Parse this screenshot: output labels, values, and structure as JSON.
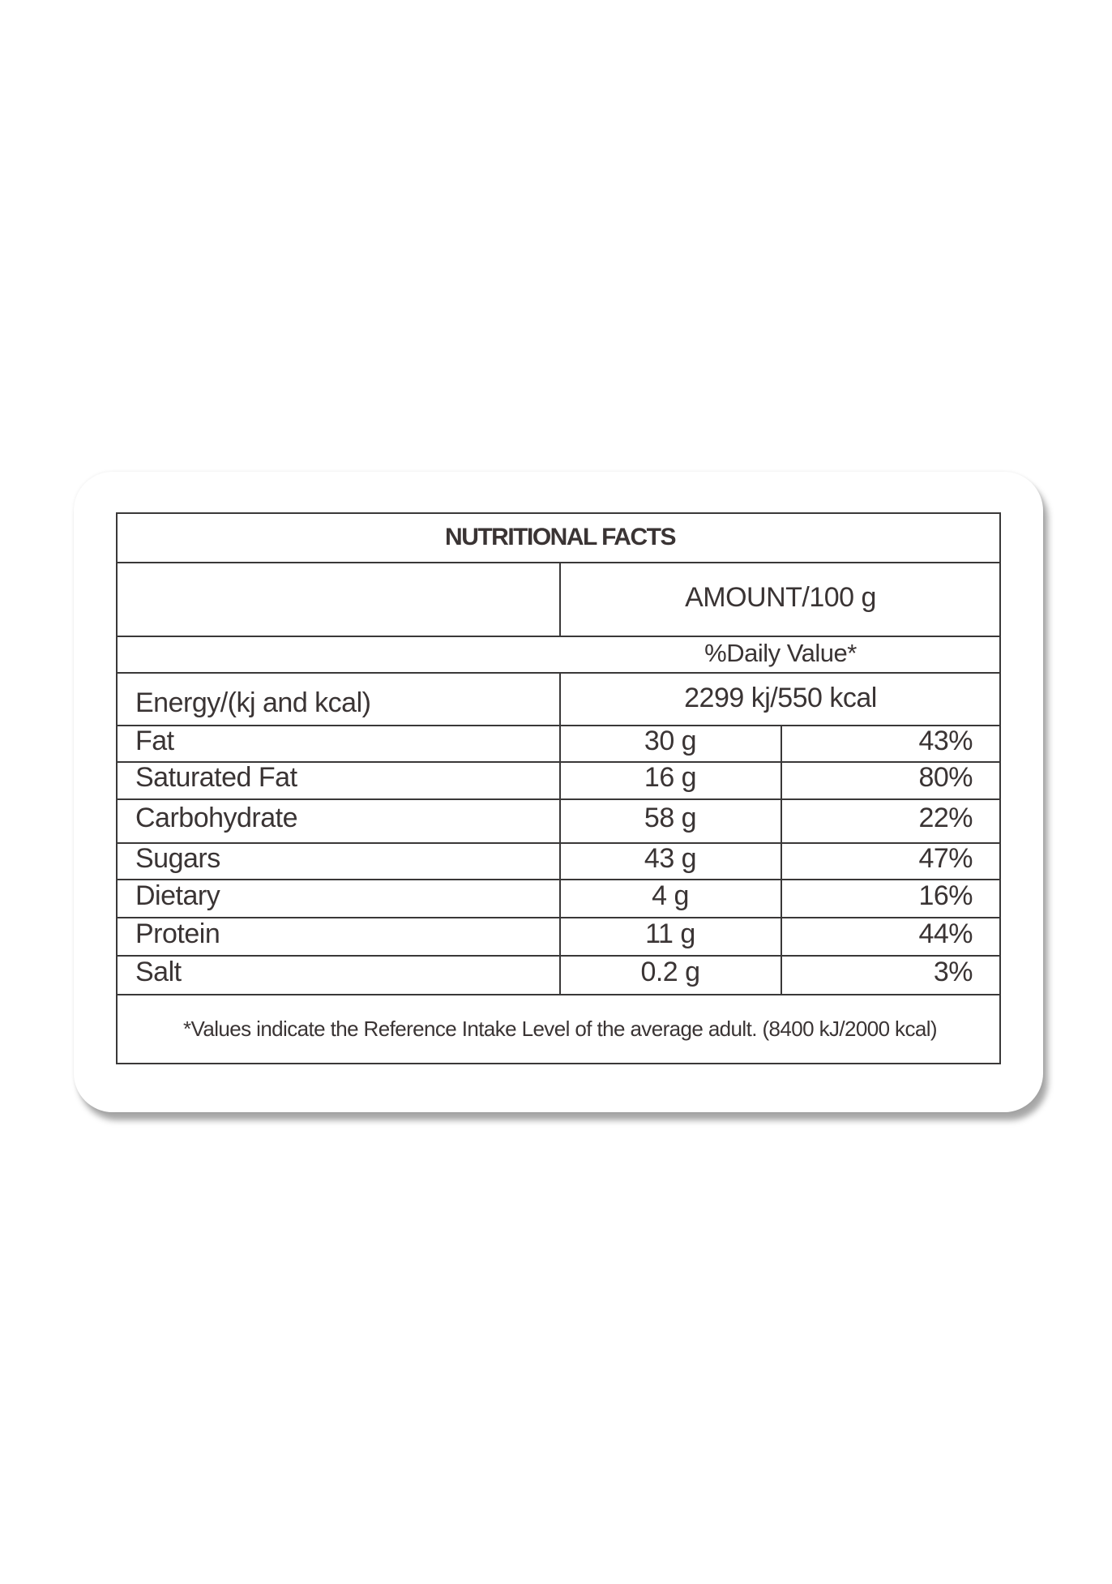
{
  "table": {
    "title": "NUTRITIONAL FACTS",
    "amount_header": "AMOUNT/100 g",
    "daily_value_header": "%Daily Value*",
    "energy": {
      "label": "Energy/(kj and kcal)",
      "value": "2299 kj/550 kcal"
    },
    "rows": [
      {
        "label": "Fat",
        "amount": "30 g",
        "daily": "43%"
      },
      {
        "label": "Saturated Fat",
        "amount": "16 g",
        "daily": "80%"
      },
      {
        "label": "Carbohydrate",
        "amount": "58 g",
        "daily": "22%"
      },
      {
        "label": "Sugars",
        "amount": "43 g",
        "daily": "47%"
      },
      {
        "label": "Dietary",
        "amount": "4 g",
        "daily": "16%"
      },
      {
        "label": "Protein",
        "amount": "11 g",
        "daily": "44%"
      },
      {
        "label": "Salt",
        "amount": "0.2 g",
        "daily": "3%"
      }
    ],
    "footnote": "*Values indicate the Reference Intake Level of the average adult. (8400 kJ/2000 kcal)"
  }
}
